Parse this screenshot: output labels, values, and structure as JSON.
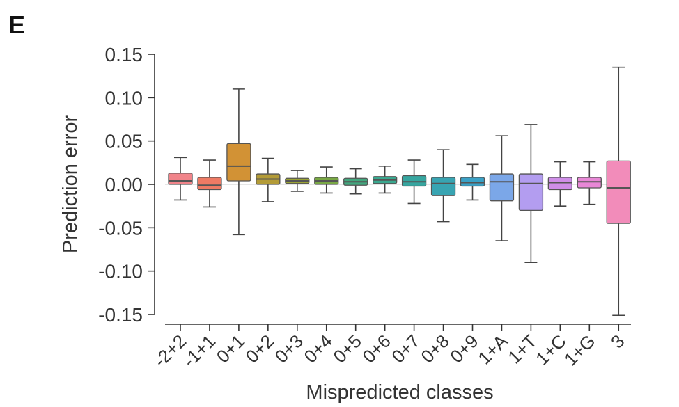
{
  "panel_label": "E",
  "chart_data": {
    "type": "box",
    "xlabel": "Mispredicted classes",
    "ylabel": "Prediction error",
    "ylim": [
      -0.15,
      0.15
    ],
    "yticks": [
      0.15,
      0.1,
      0.05,
      0.0,
      -0.05,
      -0.1,
      -0.15
    ],
    "ytick_labels": [
      "0.15",
      "0.10",
      "0.05",
      "0.00",
      "-0.05",
      "-0.10",
      "-0.15"
    ],
    "grid": false,
    "reference_line": 0.0,
    "categories": [
      "-2+2",
      "-1+1",
      "0+1",
      "0+2",
      "0+3",
      "0+4",
      "0+5",
      "0+6",
      "0+7",
      "0+8",
      "0+9",
      "1+A",
      "1+T",
      "1+C",
      "1+G",
      "3"
    ],
    "boxes": [
      {
        "category": "-2+2",
        "whisker_low": -0.018,
        "q1": 0.0,
        "median": 0.004,
        "q3": 0.013,
        "whisker_high": 0.031,
        "color": "#f1848a"
      },
      {
        "category": "-1+1",
        "whisker_low": -0.026,
        "q1": -0.006,
        "median": -0.001,
        "q3": 0.008,
        "whisker_high": 0.028,
        "color": "#ee7a64"
      },
      {
        "category": "0+1",
        "whisker_low": -0.058,
        "q1": 0.004,
        "median": 0.021,
        "q3": 0.047,
        "whisker_high": 0.11,
        "color": "#d29235"
      },
      {
        "category": "0+2",
        "whisker_low": -0.02,
        "q1": 0.0,
        "median": 0.006,
        "q3": 0.012,
        "whisker_high": 0.03,
        "color": "#b39b37"
      },
      {
        "category": "0+3",
        "whisker_low": -0.008,
        "q1": 0.001,
        "median": 0.004,
        "q3": 0.007,
        "whisker_high": 0.016,
        "color": "#9aa334"
      },
      {
        "category": "0+4",
        "whisker_low": -0.01,
        "q1": 0.0,
        "median": 0.004,
        "q3": 0.008,
        "whisker_high": 0.02,
        "color": "#79a844"
      },
      {
        "category": "0+5",
        "whisker_low": -0.011,
        "q1": -0.001,
        "median": 0.003,
        "q3": 0.007,
        "whisker_high": 0.018,
        "color": "#43a77e"
      },
      {
        "category": "0+6",
        "whisker_low": -0.01,
        "q1": 0.001,
        "median": 0.005,
        "q3": 0.009,
        "whisker_high": 0.021,
        "color": "#3aa88f"
      },
      {
        "category": "0+7",
        "whisker_low": -0.022,
        "q1": -0.002,
        "median": 0.003,
        "q3": 0.01,
        "whisker_high": 0.028,
        "color": "#36a6a0"
      },
      {
        "category": "0+8",
        "whisker_low": -0.043,
        "q1": -0.013,
        "median": 0.001,
        "q3": 0.008,
        "whisker_high": 0.04,
        "color": "#38a4b2"
      },
      {
        "category": "0+9",
        "whisker_low": -0.018,
        "q1": -0.002,
        "median": 0.002,
        "q3": 0.008,
        "whisker_high": 0.023,
        "color": "#3aa1c6"
      },
      {
        "category": "1+A",
        "whisker_low": -0.065,
        "q1": -0.019,
        "median": 0.003,
        "q3": 0.012,
        "whisker_high": 0.056,
        "color": "#7ba7e8"
      },
      {
        "category": "1+T",
        "whisker_low": -0.09,
        "q1": -0.03,
        "median": 0.001,
        "q3": 0.012,
        "whisker_high": 0.069,
        "color": "#b39df0"
      },
      {
        "category": "1+C",
        "whisker_low": -0.025,
        "q1": -0.006,
        "median": 0.002,
        "q3": 0.008,
        "whisker_high": 0.026,
        "color": "#cf8ee8"
      },
      {
        "category": "1+G",
        "whisker_low": -0.023,
        "q1": -0.004,
        "median": 0.003,
        "q3": 0.008,
        "whisker_high": 0.026,
        "color": "#e887d6"
      },
      {
        "category": "3",
        "whisker_low": -0.151,
        "q1": -0.045,
        "median": -0.004,
        "q3": 0.027,
        "whisker_high": 0.135,
        "color": "#f28cba"
      }
    ]
  }
}
